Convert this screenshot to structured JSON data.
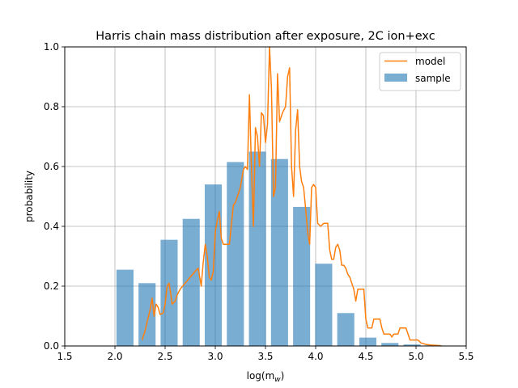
{
  "chart_data": {
    "type": "bar+line",
    "title": "Harris chain mass distribution after exposure, 2C ion+exc",
    "xlabel_main": "log(m",
    "xlabel_sub": "w",
    "xlabel_close": ")",
    "ylabel": "probability",
    "xlim": [
      1.5,
      5.5
    ],
    "ylim": [
      0.0,
      1.0
    ],
    "grid": true,
    "legend_position": "upper right",
    "xticks": [
      "1.5",
      "2.0",
      "2.5",
      "3.0",
      "3.5",
      "4.0",
      "4.5",
      "5.0",
      "5.5"
    ],
    "yticks": [
      "0.0",
      "0.2",
      "0.4",
      "0.6",
      "0.8",
      "1.0"
    ],
    "bar_series": {
      "name": "sample",
      "color": "#1f77b4",
      "alpha": 0.6,
      "bar_width": 0.17,
      "x": [
        2.1,
        2.32,
        2.54,
        2.76,
        2.98,
        3.2,
        3.42,
        3.64,
        3.86,
        4.08,
        4.3,
        4.52,
        4.74,
        4.96,
        5.18,
        5.4
      ],
      "values": [
        0.255,
        0.21,
        0.355,
        0.425,
        0.54,
        0.615,
        0.65,
        0.625,
        0.465,
        0.275,
        0.11,
        0.028,
        0.01,
        0.005,
        0.002,
        0.001
      ]
    },
    "line_series": {
      "name": "model",
      "color": "#ff7f0e",
      "x": [
        2.27,
        2.3,
        2.32,
        2.35,
        2.37,
        2.39,
        2.41,
        2.43,
        2.45,
        2.48,
        2.5,
        2.52,
        2.54,
        2.57,
        2.6,
        2.62,
        2.65,
        2.7,
        2.75,
        2.8,
        2.83,
        2.86,
        2.88,
        2.9,
        2.92,
        2.94,
        2.96,
        2.98,
        3.0,
        3.02,
        3.04,
        3.06,
        3.08,
        3.1,
        3.14,
        3.18,
        3.2,
        3.25,
        3.28,
        3.3,
        3.32,
        3.34,
        3.36,
        3.38,
        3.4,
        3.42,
        3.44,
        3.46,
        3.48,
        3.5,
        3.52,
        3.54,
        3.56,
        3.58,
        3.6,
        3.62,
        3.64,
        3.67,
        3.7,
        3.72,
        3.74,
        3.76,
        3.78,
        3.8,
        3.82,
        3.84,
        3.86,
        3.88,
        3.9,
        3.92,
        3.94,
        3.96,
        3.98,
        4.0,
        4.02,
        4.05,
        4.08,
        4.1,
        4.12,
        4.14,
        4.16,
        4.18,
        4.2,
        4.22,
        4.24,
        4.26,
        4.28,
        4.3,
        4.32,
        4.34,
        4.36,
        4.38,
        4.4,
        4.42,
        4.44,
        4.46,
        4.48,
        4.5,
        4.52,
        4.54,
        4.56,
        4.58,
        4.6,
        4.64,
        4.66,
        4.68,
        4.7,
        4.72,
        4.74,
        4.76,
        4.78,
        4.8,
        4.82,
        4.84,
        4.86,
        4.88,
        4.9,
        4.92,
        4.94,
        4.96,
        4.98,
        5.0,
        5.02,
        5.05,
        5.1,
        5.15,
        5.2,
        5.25
      ],
      "y": [
        0.02,
        0.05,
        0.08,
        0.12,
        0.16,
        0.1,
        0.14,
        0.13,
        0.105,
        0.11,
        0.14,
        0.2,
        0.21,
        0.14,
        0.15,
        0.17,
        0.19,
        0.21,
        0.23,
        0.25,
        0.26,
        0.2,
        0.28,
        0.34,
        0.3,
        0.23,
        0.22,
        0.25,
        0.38,
        0.42,
        0.45,
        0.36,
        0.34,
        0.34,
        0.34,
        0.47,
        0.48,
        0.53,
        0.59,
        0.6,
        0.59,
        0.84,
        0.6,
        0.4,
        0.73,
        0.7,
        0.6,
        0.78,
        0.77,
        0.68,
        0.74,
        1.0,
        0.86,
        0.5,
        0.53,
        0.91,
        0.75,
        0.78,
        0.8,
        0.9,
        0.93,
        0.6,
        0.5,
        0.72,
        0.79,
        0.6,
        0.55,
        0.53,
        0.46,
        0.38,
        0.34,
        0.53,
        0.54,
        0.53,
        0.41,
        0.4,
        0.41,
        0.41,
        0.41,
        0.32,
        0.29,
        0.29,
        0.33,
        0.34,
        0.32,
        0.27,
        0.27,
        0.26,
        0.24,
        0.23,
        0.21,
        0.19,
        0.15,
        0.19,
        0.19,
        0.19,
        0.19,
        0.09,
        0.06,
        0.06,
        0.06,
        0.09,
        0.09,
        0.09,
        0.06,
        0.04,
        0.04,
        0.04,
        0.04,
        0.03,
        0.04,
        0.04,
        0.04,
        0.06,
        0.06,
        0.06,
        0.06,
        0.04,
        0.02,
        0.02,
        0.02,
        0.02,
        0.02,
        0.01,
        0.005,
        0.003,
        0.002,
        0.001
      ]
    }
  }
}
